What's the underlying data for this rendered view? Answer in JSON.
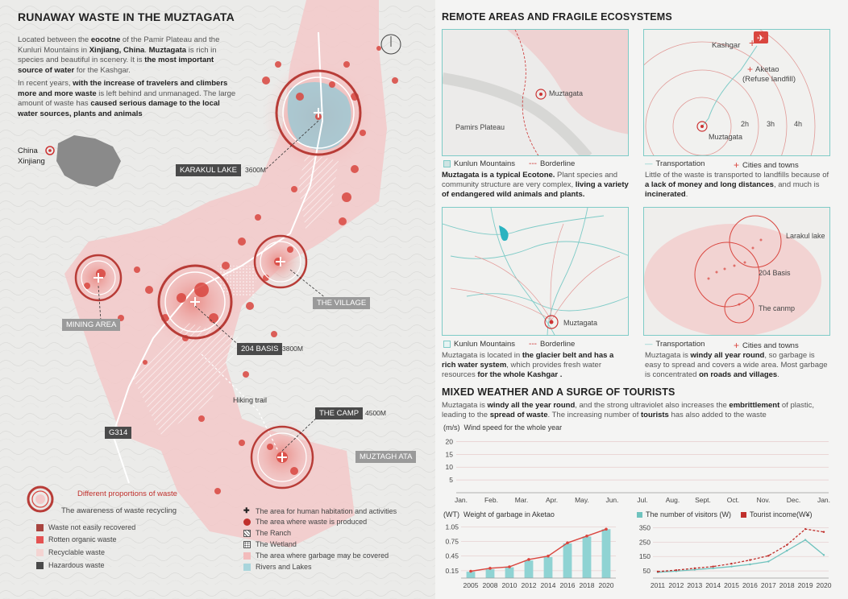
{
  "title": "RUNAWAY WASTE IN THE MUZTAGATA",
  "intro": {
    "p1_a": "Located between the ",
    "p1_b": "eocotne",
    "p1_c": " of the Pamir Plateau and the Kunluri Mountains in ",
    "p1_d": "Xinjiang, China",
    "p1_e": ". ",
    "p1_f": "Muztagata",
    "p1_g": " is rich in species and beautiful in scenery. It is ",
    "p1_h": "the most important source of water",
    "p1_i": " for the Kashgar.",
    "p2_a": "In recent years, ",
    "p2_b": "with the increase of travelers and climbers more and more waste",
    "p2_c": " is left behind and unmanaged. The large amount of waste has ",
    "p2_d": "caused serious damage to the local water sources, plants and animals"
  },
  "inset": {
    "country": "China",
    "region": "Xinjiang"
  },
  "places": {
    "karakul": {
      "name": "KARAKUL LAKE",
      "elev": "3600M"
    },
    "village": {
      "name": "THE VILLAGE"
    },
    "mining": {
      "name": "MINING AREA"
    },
    "basis": {
      "name": "204 BASIS",
      "elev": "3800M"
    },
    "camp": {
      "name": "THE CAMP",
      "elev": "4500M"
    },
    "muztagh": {
      "name": "MUZTAGH ATA"
    },
    "g314": {
      "name": "G314"
    },
    "trail": {
      "name": "Hiking trail"
    }
  },
  "legend_left": {
    "proportions": "Different proportions of waste",
    "awareness": "The awareness of waste recycling",
    "items": [
      {
        "label": "Waste not easily recovered",
        "color": "#a8443f"
      },
      {
        "label": "Rotten organic waste",
        "color": "#e45252"
      },
      {
        "label": "Recyclable waste",
        "color": "#f4d4d2"
      },
      {
        "label": "Hazardous waste",
        "color": "#4a4a4a"
      }
    ]
  },
  "legend_center": [
    {
      "label": "The area for human habitation and activities",
      "sym": "+"
    },
    {
      "label": "The area where waste is produced",
      "sym": "dot"
    },
    {
      "label": "The Ranch",
      "sym": "hatch"
    },
    {
      "label": "The Wetland",
      "sym": "dots"
    },
    {
      "label": "The area where garbage may be covered",
      "sym": "pink"
    },
    {
      "label": "Rivers and Lakes",
      "sym": "blue"
    }
  ],
  "right": {
    "heading1": "REMOTE AREAS AND FRAGILE ECOSYSTEMS",
    "p1": {
      "muztagata": "Muztagata",
      "plateau": "Pamirs Plateau",
      "leg1": "Kunlun Mountains",
      "leg2": "Borderline",
      "d_a": "Muztagata is a typical Ecotone.",
      "d_b": " Plant species and community structure are very complex,",
      "d_c": " living a variety of endangered wild animals and plants."
    },
    "p2": {
      "kashgar": "Kashgar",
      "aketao": "Aketao",
      "refuse": "(Refuse landfill)",
      "muztagata": "Muztagata",
      "h2": "2h",
      "h3": "3h",
      "h4": "4h",
      "leg1": "Transportation",
      "leg2": "Cities and towns",
      "d_a": "Little of the waste is transported to landfills because of ",
      "d_b": "a lack of money and long distances",
      "d_c": ", and much is ",
      "d_d": "incinerated",
      "d_e": "."
    },
    "p3": {
      "muztagata": "Muztagata",
      "leg1": "Kunlun Mountains",
      "leg2": "Borderline",
      "d_a": "Muztagata is located in ",
      "d_b": "the glacier belt and has a rich water system",
      "d_c": ", which provides fresh water resources",
      "d_d": " for the whole Kashgar ."
    },
    "p4": {
      "lake": "Larakul lake",
      "basis": "204 Basis",
      "camp": "The canmp",
      "leg1": "Transportation",
      "leg2": "Cities and towns",
      "d_a": "Muztagata is ",
      "d_b": "windy all year round",
      "d_c": ", so garbage is easy to spread",
      "d_d": " and covers a wide area. Most garbage is concentrated ",
      "d_e": "on roads and villages",
      "d_f": "."
    },
    "heading2": "MIXED WEATHER AND A SURGE OF TOURISTS",
    "p5": {
      "a": "Muztagata is ",
      "b": "windy all the year round",
      "c": ", and the strong ultraviolet also increases the ",
      "d": "embrittlement",
      "e": " of plastic, leading to the ",
      "f": "spread of waste",
      "g": ". The increasing number of ",
      "h": "tourists",
      "i": " has also added to the waste"
    }
  },
  "colors": {
    "accent": "#d9463f",
    "teal": "#7ecbc7",
    "pink": "#f3c9c9",
    "dark": "#4a4a4a"
  },
  "chart_data": [
    {
      "type": "line",
      "title": "Wind speed for the whole year",
      "ylabel": "(m/s)",
      "ylim": [
        0,
        22
      ],
      "yticks": [
        5,
        10,
        15,
        20
      ],
      "categories": [
        "Jan.",
        "Feb.",
        "Mar.",
        "Apr.",
        "May.",
        "Jun.",
        "Jul.",
        "Aug.",
        "Sept.",
        "Oct.",
        "Nov.",
        "Dec.",
        "Jan."
      ],
      "series": []
    },
    {
      "type": "bar",
      "title": "Weight of garbage in Aketao",
      "ylabel": "(WT)",
      "ylim": [
        0,
        1.12
      ],
      "yticks": [
        0.15,
        0.45,
        0.75,
        1.05
      ],
      "categories": [
        "2005",
        "2008",
        "2010",
        "2012",
        "2014",
        "2016",
        "2018",
        "2020"
      ],
      "values": [
        0.13,
        0.18,
        0.22,
        0.36,
        0.43,
        0.71,
        0.85,
        1.0
      ],
      "line": [
        0.14,
        0.2,
        0.23,
        0.38,
        0.45,
        0.72,
        0.86,
        1.0
      ]
    },
    {
      "type": "line",
      "ylim": [
        0,
        380
      ],
      "yticks": [
        50,
        150,
        250,
        350
      ],
      "categories": [
        "2011",
        "2012",
        "2013",
        "2014",
        "2015",
        "2016",
        "2017",
        "2018",
        "2019",
        "2020"
      ],
      "series": [
        {
          "name": "The number of visitors (W)",
          "values": [
            40,
            48,
            58,
            68,
            80,
            95,
            115,
            190,
            265,
            160
          ]
        },
        {
          "name": "Tourist income(W¥)",
          "values": [
            45,
            55,
            68,
            80,
            100,
            125,
            155,
            230,
            340,
            320
          ]
        }
      ]
    }
  ]
}
